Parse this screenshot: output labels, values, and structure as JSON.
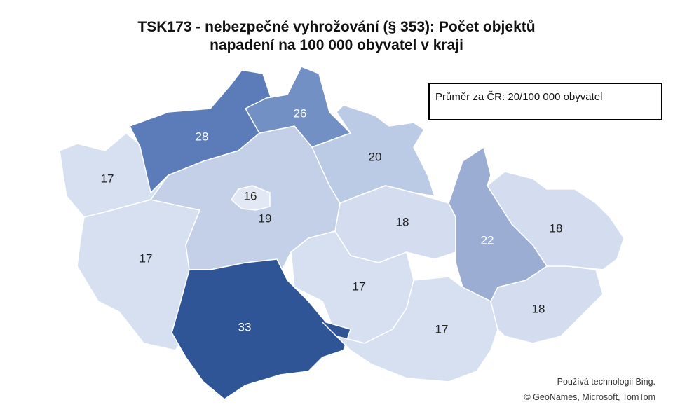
{
  "map": {
    "title": "TSK173 - nebezpečné vyhrožování (§ 353): Počet objektů napadení na 100 000 obyvatel v kraji",
    "note": "Průměr za ČR: 20/100 000 obyvatel",
    "attribution": [
      "Používá technologii Bing.",
      "© GeoNames, Microsoft, TomTom"
    ],
    "regions": [
      {
        "value": 17,
        "color": "#d7e0f0",
        "text_color": "#222222"
      },
      {
        "value": 17,
        "color": "#d7e0f0",
        "text_color": "#222222"
      },
      {
        "value": 19,
        "color": "#c3d0e8",
        "text_color": "#222222"
      },
      {
        "value": 28,
        "color": "#5b7cb8",
        "text_color": "#ffffff"
      },
      {
        "value": 26,
        "color": "#7390c5",
        "text_color": "#ffffff"
      },
      {
        "value": 20,
        "color": "#bccbe5",
        "text_color": "#222222"
      },
      {
        "value": 18,
        "color": "#d3ddef",
        "text_color": "#222222"
      },
      {
        "value": 17,
        "color": "#d7e0f0",
        "text_color": "#222222"
      },
      {
        "value": 33,
        "color": "#2f5597",
        "text_color": "#ffffff"
      },
      {
        "value": 17,
        "color": "#d7e0f0",
        "text_color": "#222222"
      },
      {
        "value": 18,
        "color": "#d3ddef",
        "text_color": "#222222"
      },
      {
        "value": 18,
        "color": "#d3ddef",
        "text_color": "#222222"
      },
      {
        "value": 22,
        "color": "#9badd3",
        "text_color": "#ffffff"
      },
      {
        "value": 16,
        "color": "#e2e9f5",
        "text_color": "#222222"
      }
    ]
  }
}
